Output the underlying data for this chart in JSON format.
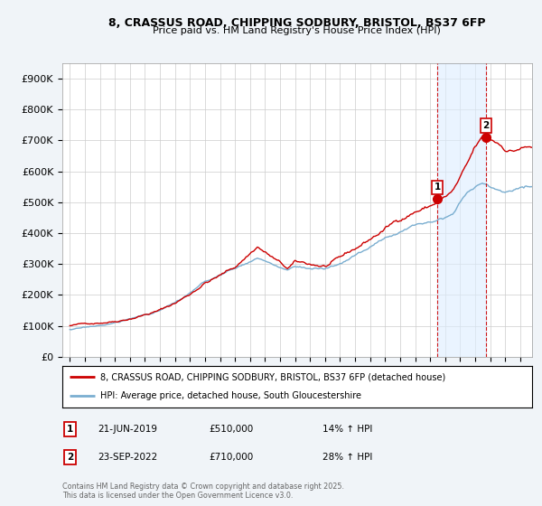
{
  "title1": "8, CRASSUS ROAD, CHIPPING SODBURY, BRISTOL, BS37 6FP",
  "title2": "Price paid vs. HM Land Registry's House Price Index (HPI)",
  "ylabel_ticks": [
    "£0",
    "£100K",
    "£200K",
    "£300K",
    "£400K",
    "£500K",
    "£600K",
    "£700K",
    "£800K",
    "£900K"
  ],
  "ytick_values": [
    0,
    100000,
    200000,
    300000,
    400000,
    500000,
    600000,
    700000,
    800000,
    900000
  ],
  "ylim": [
    0,
    950000
  ],
  "xlim_start": 1994.5,
  "xlim_end": 2025.8,
  "legend_line1": "8, CRASSUS ROAD, CHIPPING SODBURY, BRISTOL, BS37 6FP (detached house)",
  "legend_line2": "HPI: Average price, detached house, South Gloucestershire",
  "red_color": "#cc0000",
  "blue_color": "#7aaed0",
  "blue_fill_color": "#ddeeff",
  "marker1_date": "21-JUN-2019",
  "marker1_price": "£510,000",
  "marker1_hpi": "14% ↑ HPI",
  "marker1_year": 2019.47,
  "marker1_value": 510000,
  "marker2_date": "23-SEP-2022",
  "marker2_price": "£710,000",
  "marker2_hpi": "28% ↑ HPI",
  "marker2_year": 2022.73,
  "marker2_value": 710000,
  "footer": "Contains HM Land Registry data © Crown copyright and database right 2025.\nThis data is licensed under the Open Government Licence v3.0.",
  "bg_color": "#f0f4f8",
  "plot_bg": "#ffffff",
  "dashed_line_color": "#cc0000",
  "note1_label": "1",
  "note2_label": "2"
}
